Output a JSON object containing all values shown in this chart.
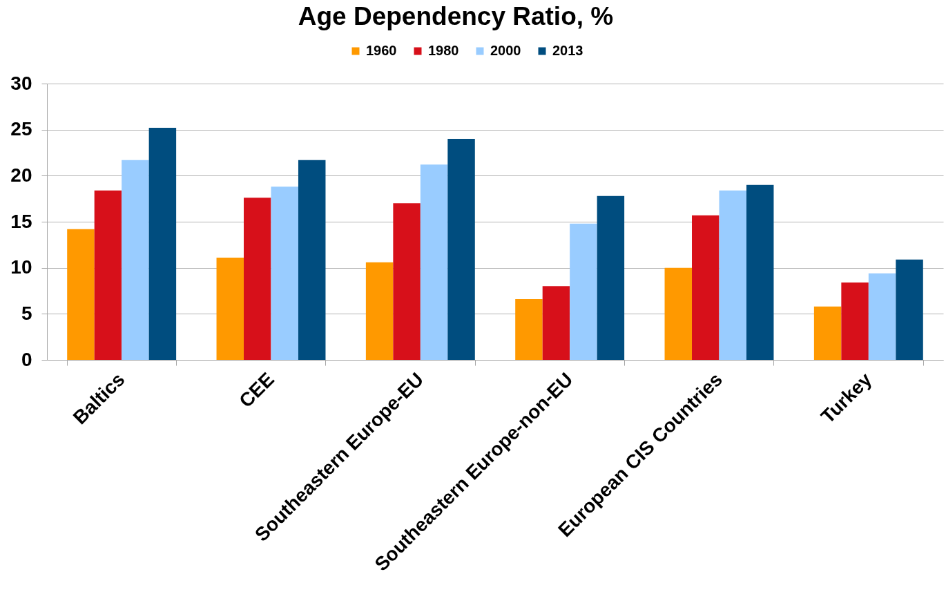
{
  "chart_data": {
    "type": "bar",
    "title": "Age Dependency Ratio, %",
    "categories": [
      "Baltics",
      "CEE",
      "Southeastern Europe-EU",
      "Southeastern Europe-non-EU",
      "European CIS Countries",
      "Turkey"
    ],
    "series": [
      {
        "name": "1960",
        "color": "#ff9900",
        "values": [
          14.2,
          11.1,
          10.6,
          6.6,
          10.0,
          5.8
        ]
      },
      {
        "name": "1980",
        "color": "#d7101a",
        "values": [
          18.4,
          17.6,
          17.0,
          8.0,
          15.7,
          8.4
        ]
      },
      {
        "name": "2000",
        "color": "#99ccff",
        "values": [
          21.7,
          18.8,
          21.2,
          14.8,
          18.4,
          9.4
        ]
      },
      {
        "name": "2013",
        "color": "#004d7f",
        "values": [
          25.2,
          21.7,
          24.0,
          17.8,
          19.0,
          10.9
        ]
      }
    ],
    "ylim": [
      0,
      30
    ],
    "yticks": [
      0,
      5,
      10,
      15,
      20,
      25,
      30
    ],
    "grid": "y",
    "legend": "top"
  }
}
